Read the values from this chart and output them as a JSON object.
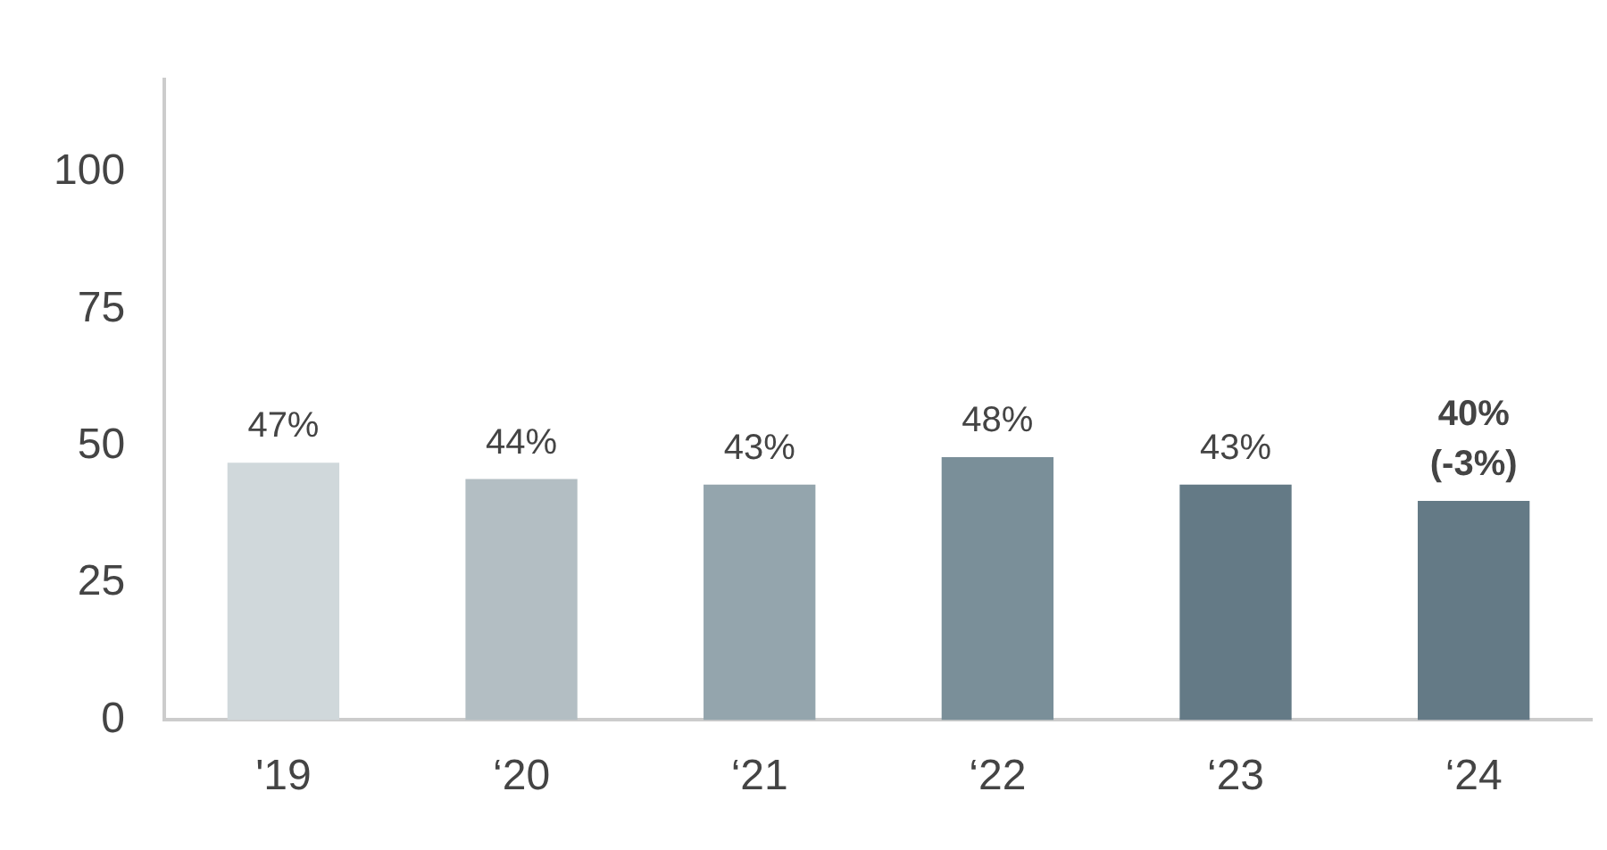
{
  "chart_data": {
    "type": "bar",
    "categories": [
      "'19",
      "‘20",
      "‘21",
      "‘22",
      "‘23",
      "‘24"
    ],
    "values": [
      47,
      44,
      43,
      48,
      43,
      40
    ],
    "colors": [
      "#d0d8db",
      "#b3bec3",
      "#94a5ad",
      "#7a8f99",
      "#647a86",
      "#647a86"
    ],
    "value_labels": [
      "47%",
      "44%",
      "43%",
      "48%",
      "43%",
      "40%\n(-3%)"
    ],
    "ylim": [
      0,
      117
    ],
    "yticks": [
      0,
      25,
      50,
      75,
      100
    ],
    "grid": false,
    "legend": false
  }
}
